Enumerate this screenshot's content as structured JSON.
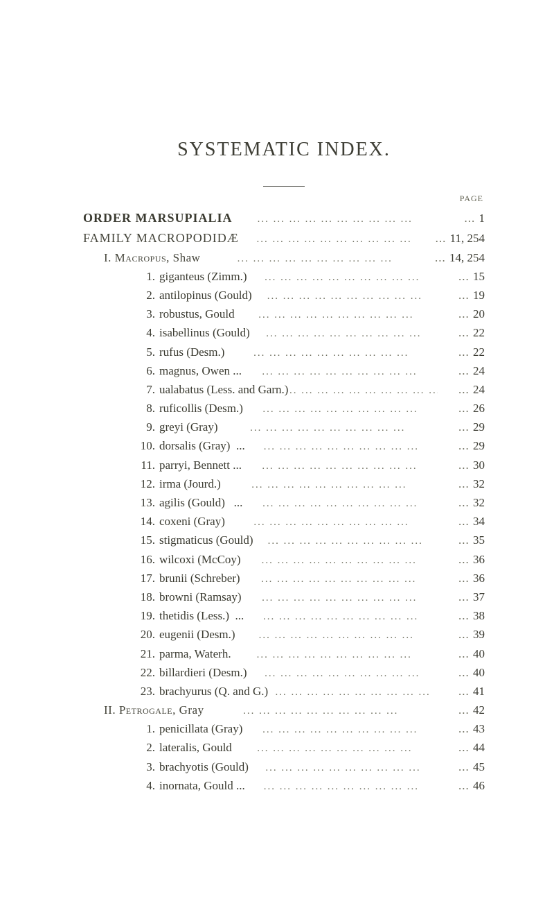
{
  "page": {
    "title": "SYSTEMATIC INDEX.",
    "column_header": "PAGE",
    "dot_fill": "...   ...   ...   ...   ...   ...   ...   ...   ...   ...",
    "leading_dots": "...  ",
    "colors": {
      "text": "#3a3a30",
      "title": "#3d3d34",
      "muted": "#606050",
      "dots": "#707060",
      "background": "#ffffff"
    },
    "fontsizes": {
      "title": 28,
      "body": 17,
      "pagecol": 12
    }
  },
  "entries": [
    {
      "level": 0,
      "class": "order",
      "label": "ORDER MARSUPIALIA",
      "page": "1"
    },
    {
      "level": 0,
      "class": "family",
      "label": "FAMILY MACROPODIDÆ",
      "page": "11, 254"
    },
    {
      "level": 1,
      "class": "roman",
      "label": "I. Macropus, Shaw",
      "smallcaps_tail": true,
      "page": "14, 254"
    },
    {
      "level": 2,
      "num": "1.",
      "label": "giganteus (Zimm.)",
      "page": "15"
    },
    {
      "level": 2,
      "num": "2.",
      "label": "antilopinus (Gould)",
      "page": "19"
    },
    {
      "level": 2,
      "num": "3.",
      "label": "robustus, Gould",
      "page": "20"
    },
    {
      "level": 2,
      "num": "4.",
      "label": "isabellinus (Gould)",
      "page": "22"
    },
    {
      "level": 2,
      "num": "5.",
      "label": "rufus (Desm.)",
      "page": "22"
    },
    {
      "level": 2,
      "num": "6.",
      "label": "magnus, Owen ...",
      "page": "24"
    },
    {
      "level": 2,
      "num": "7.",
      "label": "ualabatus (Less. and Garn.)",
      "page": "24"
    },
    {
      "level": 2,
      "num": "8.",
      "label": "ruficollis (Desm.)",
      "page": "26"
    },
    {
      "level": 2,
      "num": "9.",
      "label": "greyi (Gray)",
      "page": "29"
    },
    {
      "level": 2,
      "num": "10.",
      "label": "dorsalis (Gray)  ...",
      "page": "29"
    },
    {
      "level": 2,
      "num": "11.",
      "label": "parryi, Bennett ...",
      "page": "30"
    },
    {
      "level": 2,
      "num": "12.",
      "label": "irma (Jourd.)",
      "page": "32"
    },
    {
      "level": 2,
      "num": "13.",
      "label": "agilis (Gould)   ...",
      "page": "32"
    },
    {
      "level": 2,
      "num": "14.",
      "label": "coxeni (Gray)",
      "page": "34"
    },
    {
      "level": 2,
      "num": "15.",
      "label": "stigmaticus (Gould)",
      "page": "35"
    },
    {
      "level": 2,
      "num": "16.",
      "label": "wilcoxi (McCoy)",
      "page": "36"
    },
    {
      "level": 2,
      "num": "17.",
      "label": "brunii (Schreber)",
      "page": "36"
    },
    {
      "level": 2,
      "num": "18.",
      "label": "browni (Ramsay)",
      "page": "37"
    },
    {
      "level": 2,
      "num": "19.",
      "label": "thetidis (Less.)  ...",
      "page": "38"
    },
    {
      "level": 2,
      "num": "20.",
      "label": "eugenii (Desm.)",
      "page": "39"
    },
    {
      "level": 2,
      "num": "21.",
      "label": "parma, Waterh.",
      "page": "40"
    },
    {
      "level": 2,
      "num": "22.",
      "label": "billardieri (Desm.)",
      "page": "40"
    },
    {
      "level": 2,
      "num": "23.",
      "label": "brachyurus (Q. and G.)",
      "page": "41"
    },
    {
      "level": 1,
      "class": "roman",
      "label": "II. Petrogale, Gray",
      "smallcaps_tail": true,
      "page": "42"
    },
    {
      "level": 2,
      "num": "1.",
      "label": "penicillata (Gray)",
      "page": "43"
    },
    {
      "level": 2,
      "num": "2.",
      "label": "lateralis, Gould",
      "page": "44"
    },
    {
      "level": 2,
      "num": "3.",
      "label": "brachyotis (Gould)",
      "page": "45"
    },
    {
      "level": 2,
      "num": "4.",
      "label": "inornata, Gould ...",
      "page": "46"
    }
  ]
}
